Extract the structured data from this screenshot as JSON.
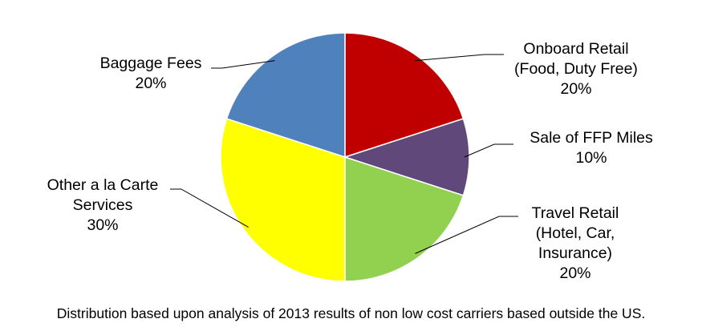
{
  "chart_data": {
    "type": "pie",
    "start_angle_deg": 0,
    "direction": "clockwise",
    "slices": [
      {
        "name": "Onboard Retail",
        "label_lines": [
          "Onboard Retail",
          "(Food, Duty Free)"
        ],
        "value_label": "20%",
        "value": 20,
        "color": "#C00000"
      },
      {
        "name": "Sale of FFP Miles",
        "label_lines": [
          "Sale of FFP Miles"
        ],
        "value_label": "10%",
        "value": 10,
        "color": "#60497A"
      },
      {
        "name": "Travel Retail",
        "label_lines": [
          "Travel Retail",
          "(Hotel, Car,",
          "Insurance)"
        ],
        "value_label": "20%",
        "value": 20,
        "color": "#92D050"
      },
      {
        "name": "Other a la Carte Services",
        "label_lines": [
          "Other a la Carte",
          "Services"
        ],
        "value_label": "30%",
        "value": 30,
        "color": "#FFFF00"
      },
      {
        "name": "Baggage Fees",
        "label_lines": [
          "Baggage Fees"
        ],
        "value_label": "20%",
        "value": 20,
        "color": "#4F81BD"
      }
    ],
    "legend": "none"
  },
  "caption": "Distribution based upon analysis of 2013 results of non low cost carriers based outside the US."
}
